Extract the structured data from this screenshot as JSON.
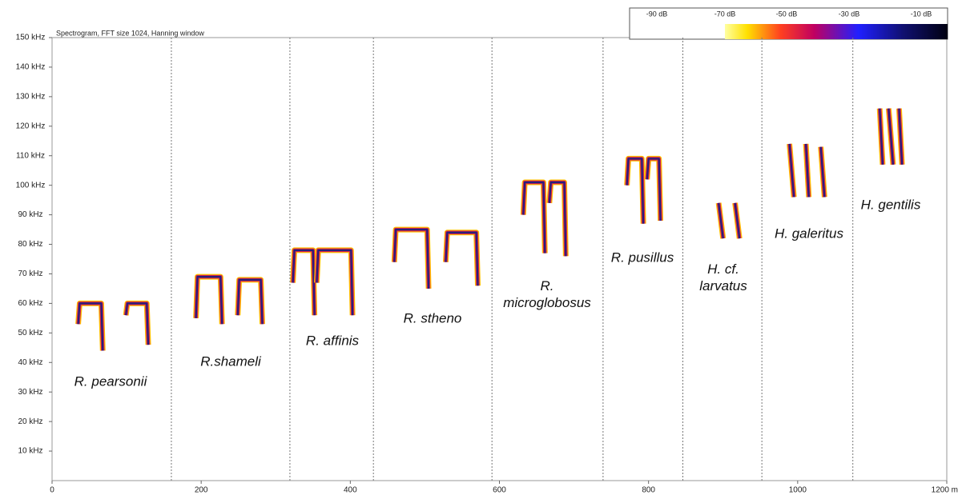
{
  "chart_data": {
    "type": "spectrogram",
    "title": "Spectrogram, FFT size 1024, Hanning window",
    "xlim": [
      0,
      1200
    ],
    "ylim": [
      0,
      150
    ],
    "xticks": [
      0,
      200,
      400,
      600,
      800,
      1000,
      {
        "value": 1200,
        "label": "1200 m"
      }
    ],
    "yticks": [
      {
        "value": 10,
        "label": "10 kHz"
      },
      {
        "value": 20,
        "label": "20 kHz"
      },
      {
        "value": 30,
        "label": "30 kHz"
      },
      {
        "value": 40,
        "label": "40 kHz"
      },
      {
        "value": 50,
        "label": "50 kHz"
      },
      {
        "value": 60,
        "label": "60 kHz"
      },
      {
        "value": 70,
        "label": "70 kHz"
      },
      {
        "value": 80,
        "label": "80 kHz"
      },
      {
        "value": 90,
        "label": "90 kHz"
      },
      {
        "value": 100,
        "label": "100 kHz"
      },
      {
        "value": 110,
        "label": "110 kHz"
      },
      {
        "value": 120,
        "label": "120 kHz"
      },
      {
        "value": 130,
        "label": "130 kHz"
      },
      {
        "value": 140,
        "label": "140 kHz"
      },
      {
        "value": 150,
        "label": "150 kHz"
      }
    ],
    "dividers": [
      160,
      319,
      431,
      590,
      739,
      846,
      952,
      1074
    ],
    "colorbar": {
      "labels": [
        "-90 dB",
        "-70 dB",
        "-50 dB",
        "-30 dB",
        "-10 dB"
      ]
    },
    "series": [
      {
        "name": "R. pearsonii",
        "calls": [
          {
            "x": [
              35,
              37,
              66,
              68
            ],
            "y": [
              53,
              60,
              60,
              44
            ]
          },
          {
            "x": [
              99,
              101,
              127,
              129
            ],
            "y": [
              56,
              60,
              60,
              46
            ]
          }
        ]
      },
      {
        "name": "R.shameli",
        "calls": [
          {
            "x": [
              193,
              195,
              226,
              228
            ],
            "y": [
              55,
              69,
              69,
              53
            ]
          },
          {
            "x": [
              249,
              251,
              280,
              282
            ],
            "y": [
              56,
              68,
              68,
              53
            ]
          }
        ]
      },
      {
        "name": "R. affinis",
        "calls": [
          {
            "x": [
              323,
              325,
              350,
              352
            ],
            "y": [
              67,
              78,
              78,
              56
            ]
          },
          {
            "x": [
              355,
              357,
              401,
              403
            ],
            "y": [
              67,
              78,
              78,
              56
            ]
          }
        ]
      },
      {
        "name": "R. stheno",
        "calls": [
          {
            "x": [
              459,
              461,
              503,
              505
            ],
            "y": [
              74,
              85,
              85,
              65
            ]
          },
          {
            "x": [
              528,
              530,
              569,
              571
            ],
            "y": [
              74,
              84,
              84,
              66
            ]
          }
        ]
      },
      {
        "name": "R. microglobosus",
        "calls": [
          {
            "x": [
              632,
              634,
              659,
              661
            ],
            "y": [
              90,
              101,
              101,
              77
            ]
          },
          {
            "x": [
              667,
              669,
              687,
              689
            ],
            "y": [
              94,
              101,
              101,
              76
            ]
          }
        ]
      },
      {
        "name": "R. pusillus",
        "calls": [
          {
            "x": [
              771,
              773,
              791,
              793
            ],
            "y": [
              100,
              109,
              109,
              87
            ]
          },
          {
            "x": [
              798,
              800,
              814,
              816
            ],
            "y": [
              102,
              109,
              109,
              88
            ]
          }
        ]
      },
      {
        "name": "H. cf. larvatus",
        "calls": [
          {
            "x": [
              894,
              900
            ],
            "y": [
              94,
              82
            ]
          },
          {
            "x": [
              916,
              922
            ],
            "y": [
              94,
              82
            ]
          }
        ]
      },
      {
        "name": "H. galeritus",
        "calls": [
          {
            "x": [
              989,
              995
            ],
            "y": [
              114,
              96
            ]
          },
          {
            "x": [
              1011,
              1015
            ],
            "y": [
              114,
              96
            ]
          },
          {
            "x": [
              1031,
              1036
            ],
            "y": [
              113,
              96
            ]
          }
        ]
      },
      {
        "name": "H. gentilis",
        "calls": [
          {
            "x": [
              1110,
              1114
            ],
            "y": [
              126,
              107
            ]
          },
          {
            "x": [
              1122,
              1128
            ],
            "y": [
              126,
              107
            ]
          },
          {
            "x": [
              1136,
              1140
            ],
            "y": [
              126,
              107
            ]
          }
        ]
      }
    ]
  }
}
